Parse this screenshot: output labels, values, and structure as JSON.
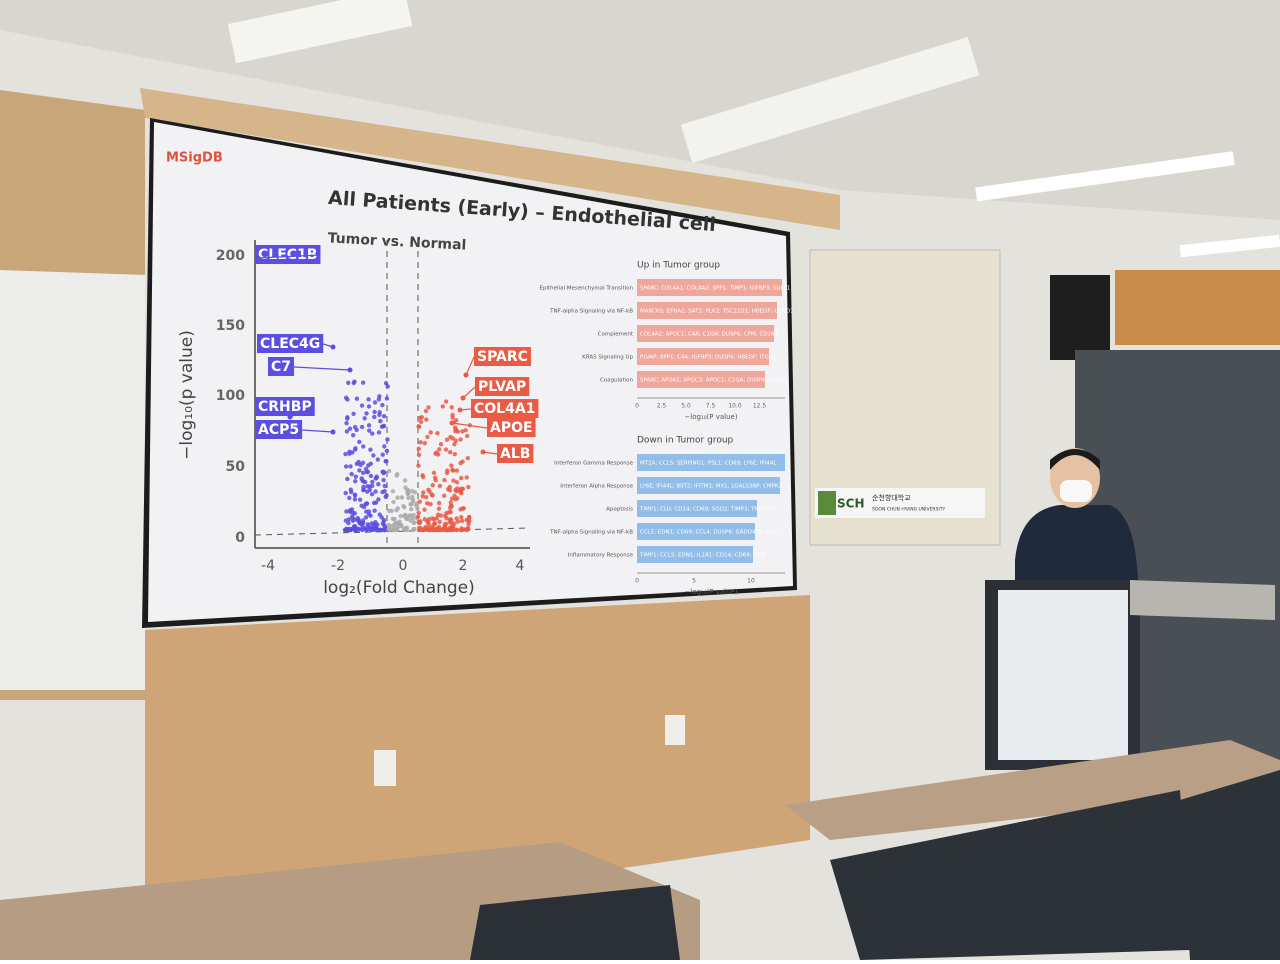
{
  "slide": {
    "brand": "MSigDB",
    "title": "All Patients (Early) – Endothelial cell",
    "volcano": {
      "subtitle": "Tumor vs. Normal",
      "x_label": "log₂(Fold Change)",
      "y_label": "−log₁₀(p value)",
      "x_ticks": [
        "-4",
        "-2",
        "0",
        "2",
        "4"
      ],
      "y_ticks": [
        "200",
        "150",
        "100",
        "50",
        "0"
      ],
      "down_genes": [
        "CLEC1B",
        "CLEC4G",
        "C7",
        "CRHBP",
        "ACP5"
      ],
      "up_genes": [
        "SPARC",
        "PLVAP",
        "COL4A1",
        "APOE",
        "ALB"
      ]
    },
    "up_panel": {
      "title": "Up in Tumor group",
      "pathways": [
        "Epithelial Mesenchymal Transition",
        "TNF-alpha Signaling via NF-kB",
        "Complement",
        "KRAS Signaling Up",
        "Coagulation"
      ],
      "genes": [
        "SPARC; COL4A1; COL4A2; SPP1; TIMP1; IGFBP3; SULF1",
        "MARCKS; EFNA1; SAT1; PLK2; TSC22D1; HBEGF; CCND1",
        "COL4A2; APOC1; C4A; C1QA; DUSP6; CPM; CD163",
        "PLVAP; SPP1; C4A; IGFBP3; DUSP6; HBEGF; ITGA2",
        "SPARC; APOA1; APOC3; APOC1; C1QA; DUSP6; HTRA1"
      ],
      "ticks": [
        "0",
        "2.5",
        "5.0",
        "7.5",
        "10.0",
        "12.5"
      ],
      "axis_label": "−log₁₀(P value)"
    },
    "down_panel": {
      "title": "Down in Tumor group",
      "pathways": [
        "Interferon Gamma Response",
        "Interferon Alpha Response",
        "Apoptosis",
        "TNF-alpha Signaling via NF-kB",
        "Inflammatory Response"
      ],
      "genes": [
        "MT2A; CCL5; SERPING1; PSL1; CD69; LY6E; IFI44L",
        "LY6E; IFI44L; BST2; IFITM1; MX1; LGALS3BP; CMPK2",
        "TIMP1; CLU; CD14; CD69; SOD2; TIMP3; TNFSF10",
        "CCL5; EDN1; CD69; CCL4; DUSP6; GADD45B; CUF1",
        "TIMP1; CCL5; EDN1; IL1R1; CD14; CD69; LY6E"
      ],
      "ticks": [
        "0",
        "5",
        "10"
      ],
      "axis_label": "−log₁₀(P value)"
    }
  },
  "sign": {
    "logo": "SCH",
    "korean": "순천향대학교",
    "english": "SOON CHUN HYANG UNIVERSITY"
  }
}
